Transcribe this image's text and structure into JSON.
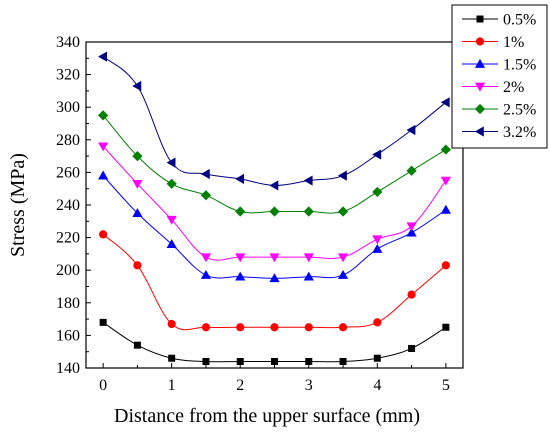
{
  "chart_data": {
    "type": "line",
    "title": "",
    "xlabel": "Distance from the upper surface (mm)",
    "ylabel": "Stress (MPa)",
    "xlim": [
      -0.25,
      5.25
    ],
    "ylim": [
      140,
      340
    ],
    "xticks": [
      0,
      1,
      2,
      3,
      4,
      5
    ],
    "yticks": [
      140,
      160,
      180,
      200,
      220,
      240,
      260,
      280,
      300,
      320,
      340
    ],
    "legend_position": "top-right",
    "x": [
      0,
      0.5,
      1,
      1.5,
      2,
      2.5,
      3,
      3.5,
      4,
      4.5,
      5
    ],
    "series": [
      {
        "name": "0.5%",
        "color": "#000000",
        "marker": "square",
        "values": [
          168,
          154,
          146,
          144,
          144,
          144,
          144,
          144,
          146,
          152,
          165
        ]
      },
      {
        "name": "1%",
        "color": "#ff0000",
        "marker": "circle",
        "values": [
          222,
          203,
          167,
          165,
          165,
          165,
          165,
          165,
          168,
          185,
          203
        ]
      },
      {
        "name": "1.5%",
        "color": "#0000ff",
        "marker": "triangle-up",
        "values": [
          258,
          235,
          216,
          197,
          196,
          195,
          196,
          197,
          213,
          223,
          237
        ]
      },
      {
        "name": "2%",
        "color": "#ff00ff",
        "marker": "triangle-down",
        "values": [
          276,
          253,
          231,
          208,
          208,
          208,
          208,
          208,
          219,
          227,
          255
        ]
      },
      {
        "name": "2.5%",
        "color": "#008000",
        "marker": "diamond",
        "values": [
          295,
          270,
          253,
          246,
          236,
          236,
          236,
          236,
          248,
          261,
          274
        ]
      },
      {
        "name": "3.2%",
        "color": "#000080",
        "marker": "triangle-left",
        "values": [
          331,
          313,
          266,
          259,
          256,
          252,
          255,
          258,
          271,
          286,
          303
        ]
      }
    ]
  }
}
